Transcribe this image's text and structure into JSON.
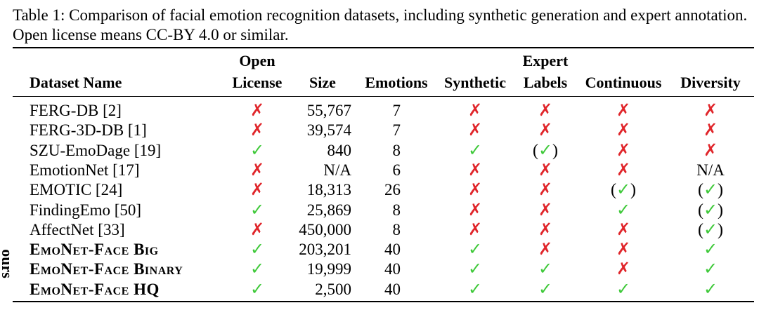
{
  "caption": "Table 1: Comparison of facial emotion recognition datasets, including synthetic generation and expert annotation. Open license means CC-BY 4.0 or similar.",
  "headers": {
    "dataset": "Dataset Name",
    "license_top": "Open",
    "license_bottom": "License",
    "size": "Size",
    "emotions": "Emotions",
    "synthetic": "Synthetic",
    "expert_top": "Expert",
    "expert_bottom": "Labels",
    "continuous": "Continuous",
    "diversity": "Diversity"
  },
  "group_label": "ours",
  "symbols": {
    "check": "✓",
    "cross": "✗",
    "paren_open": "(",
    "paren_close": ")"
  },
  "colors": {
    "check": "#3fc93a",
    "cross": "#e0262b"
  },
  "rows": [
    {
      "name": "FERG-DB [2]",
      "license": "no",
      "size": "55,767",
      "emotions": "7",
      "synthetic": "no",
      "expert": "no",
      "continuous": "no",
      "diversity": "no"
    },
    {
      "name": "FERG-3D-DB [1]",
      "license": "no",
      "size": "39,574",
      "emotions": "7",
      "synthetic": "no",
      "expert": "no",
      "continuous": "no",
      "diversity": "no"
    },
    {
      "name": "SZU-EmoDage [19]",
      "license": "yes",
      "size": "840",
      "emotions": "8",
      "synthetic": "yes",
      "expert": "partial",
      "continuous": "no",
      "diversity": "no"
    },
    {
      "name": "EmotionNet [17]",
      "license": "no",
      "size": "N/A",
      "emotions": "6",
      "synthetic": "no",
      "expert": "no",
      "continuous": "no",
      "diversity": "N/A"
    },
    {
      "name": "EMOTIC [24]",
      "license": "no",
      "size": "18,313",
      "emotions": "26",
      "synthetic": "no",
      "expert": "no",
      "continuous": "partial",
      "diversity": "partial"
    },
    {
      "name": "FindingEmo [50]",
      "license": "yes",
      "size": "25,869",
      "emotions": "8",
      "synthetic": "no",
      "expert": "no",
      "continuous": "yes",
      "diversity": "partial"
    },
    {
      "name": "AffectNet [33]",
      "license": "no",
      "size": "450,000",
      "emotions": "8",
      "synthetic": "no",
      "expert": "no",
      "continuous": "no",
      "diversity": "partial"
    },
    {
      "name": "EmoNet-Face Big",
      "ours": true,
      "license": "yes",
      "size": "203,201",
      "emotions": "40",
      "synthetic": "yes",
      "expert": "no",
      "continuous": "no",
      "diversity": "yes"
    },
    {
      "name": "EmoNet-Face Binary",
      "ours": true,
      "license": "yes",
      "size": "19,999",
      "emotions": "40",
      "synthetic": "yes",
      "expert": "yes",
      "continuous": "no",
      "diversity": "yes"
    },
    {
      "name": "EmoNet-Face HQ",
      "ours": true,
      "license": "yes",
      "size": "2,500",
      "emotions": "40",
      "synthetic": "yes",
      "expert": "yes",
      "continuous": "yes",
      "diversity": "yes"
    }
  ]
}
